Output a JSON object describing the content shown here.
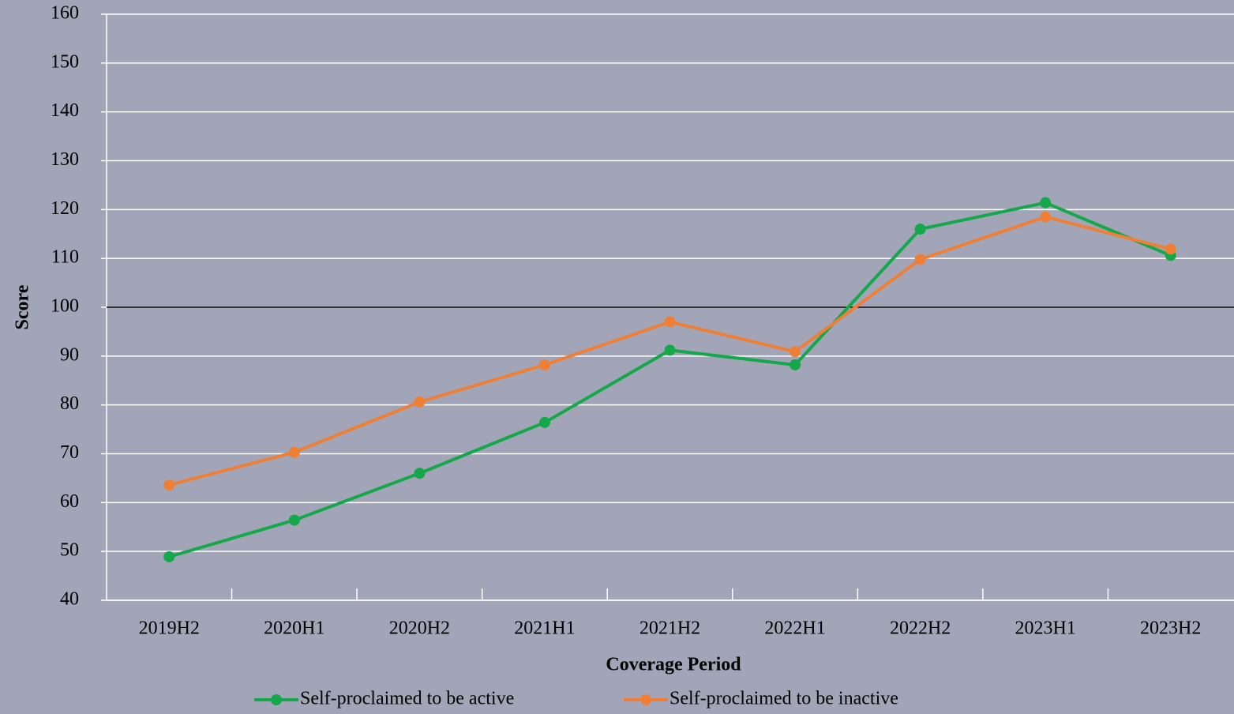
{
  "chart_data": {
    "type": "line",
    "x_label": "Coverage Period",
    "y_label": "Score",
    "categories": [
      "2019H2",
      "2020H1",
      "2020H2",
      "2021H1",
      "2021H2",
      "2022H1",
      "2022H2",
      "2023H1",
      "2023H2"
    ],
    "series": [
      {
        "name": "Self-proclaimed to be active",
        "color": "#14a84a",
        "values": [
          48.9,
          56.4,
          66.0,
          76.4,
          91.2,
          88.2,
          116.0,
          121.4,
          110.6
        ]
      },
      {
        "name": "Self-proclaimed to be inactive",
        "color": "#f07f36",
        "values": [
          63.6,
          70.3,
          80.6,
          88.2,
          97.0,
          90.9,
          109.8,
          118.5,
          111.9
        ]
      }
    ],
    "ylim": [
      40,
      160
    ],
    "yticks": [
      40,
      50,
      60,
      70,
      80,
      90,
      100,
      110,
      120,
      130,
      140,
      150,
      160
    ],
    "reference_line": 100,
    "grid": true,
    "legend": "bottom"
  }
}
